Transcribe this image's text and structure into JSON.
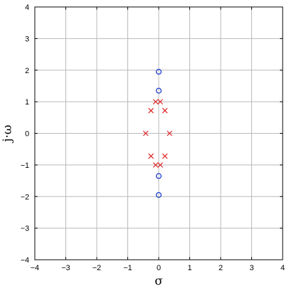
{
  "chart_data": {
    "type": "scatter",
    "xlabel": "σ",
    "ylabel": "j·ω",
    "xlim": [
      -4,
      4
    ],
    "ylim": [
      -4,
      4
    ],
    "xticks": [
      -4,
      -3,
      -2,
      -1,
      0,
      1,
      2,
      3,
      4
    ],
    "yticks": [
      -4,
      -3,
      -2,
      -1,
      0,
      1,
      2,
      3,
      4
    ],
    "grid": true,
    "series": [
      {
        "marker": "circle",
        "color": "#1f3fd0",
        "points": [
          [
            0,
            1.95
          ],
          [
            0,
            1.35
          ],
          [
            0,
            -1.35
          ],
          [
            0,
            -1.95
          ]
        ]
      },
      {
        "marker": "x",
        "color": "#e02020",
        "points": [
          [
            -0.1,
            1.0
          ],
          [
            0.05,
            1.0
          ],
          [
            -0.25,
            0.72
          ],
          [
            0.2,
            0.72
          ],
          [
            -0.42,
            0.0
          ],
          [
            0.35,
            0.0
          ],
          [
            -0.25,
            -0.72
          ],
          [
            0.2,
            -0.72
          ],
          [
            -0.1,
            -1.0
          ],
          [
            0.05,
            -1.0
          ]
        ]
      }
    ]
  }
}
